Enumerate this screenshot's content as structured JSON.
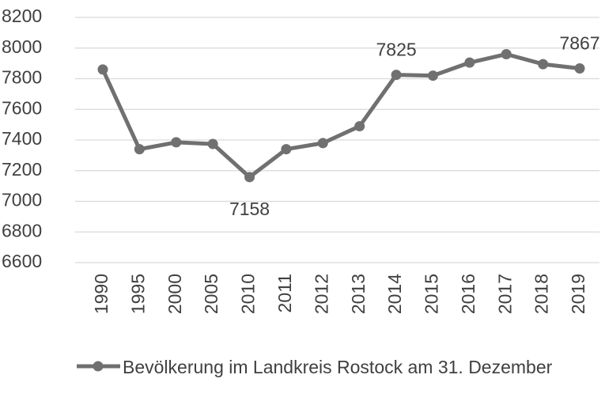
{
  "chart_data": {
    "type": "line",
    "categories": [
      "1990",
      "1995",
      "2000",
      "2005",
      "2010",
      "2011",
      "2012",
      "2013",
      "2014",
      "2015",
      "2016",
      "2017",
      "2018",
      "2019"
    ],
    "series": [
      {
        "name": "Bevölkerung im Landkreis Rostock am 31. Dezember",
        "color": "#707070",
        "values": [
          7860,
          7340,
          7385,
          7374,
          7158,
          7340,
          7380,
          7490,
          7825,
          7820,
          7905,
          7960,
          7895,
          7867
        ],
        "value_labels": [
          null,
          null,
          null,
          null,
          "7158",
          null,
          null,
          null,
          "7825",
          null,
          null,
          null,
          null,
          "7867"
        ]
      }
    ],
    "ylim": [
      6600,
      8200
    ],
    "yticks": [
      6600,
      6800,
      7000,
      7200,
      7400,
      7600,
      7800,
      8000,
      8200
    ],
    "grid": true,
    "legend": "bottom"
  }
}
